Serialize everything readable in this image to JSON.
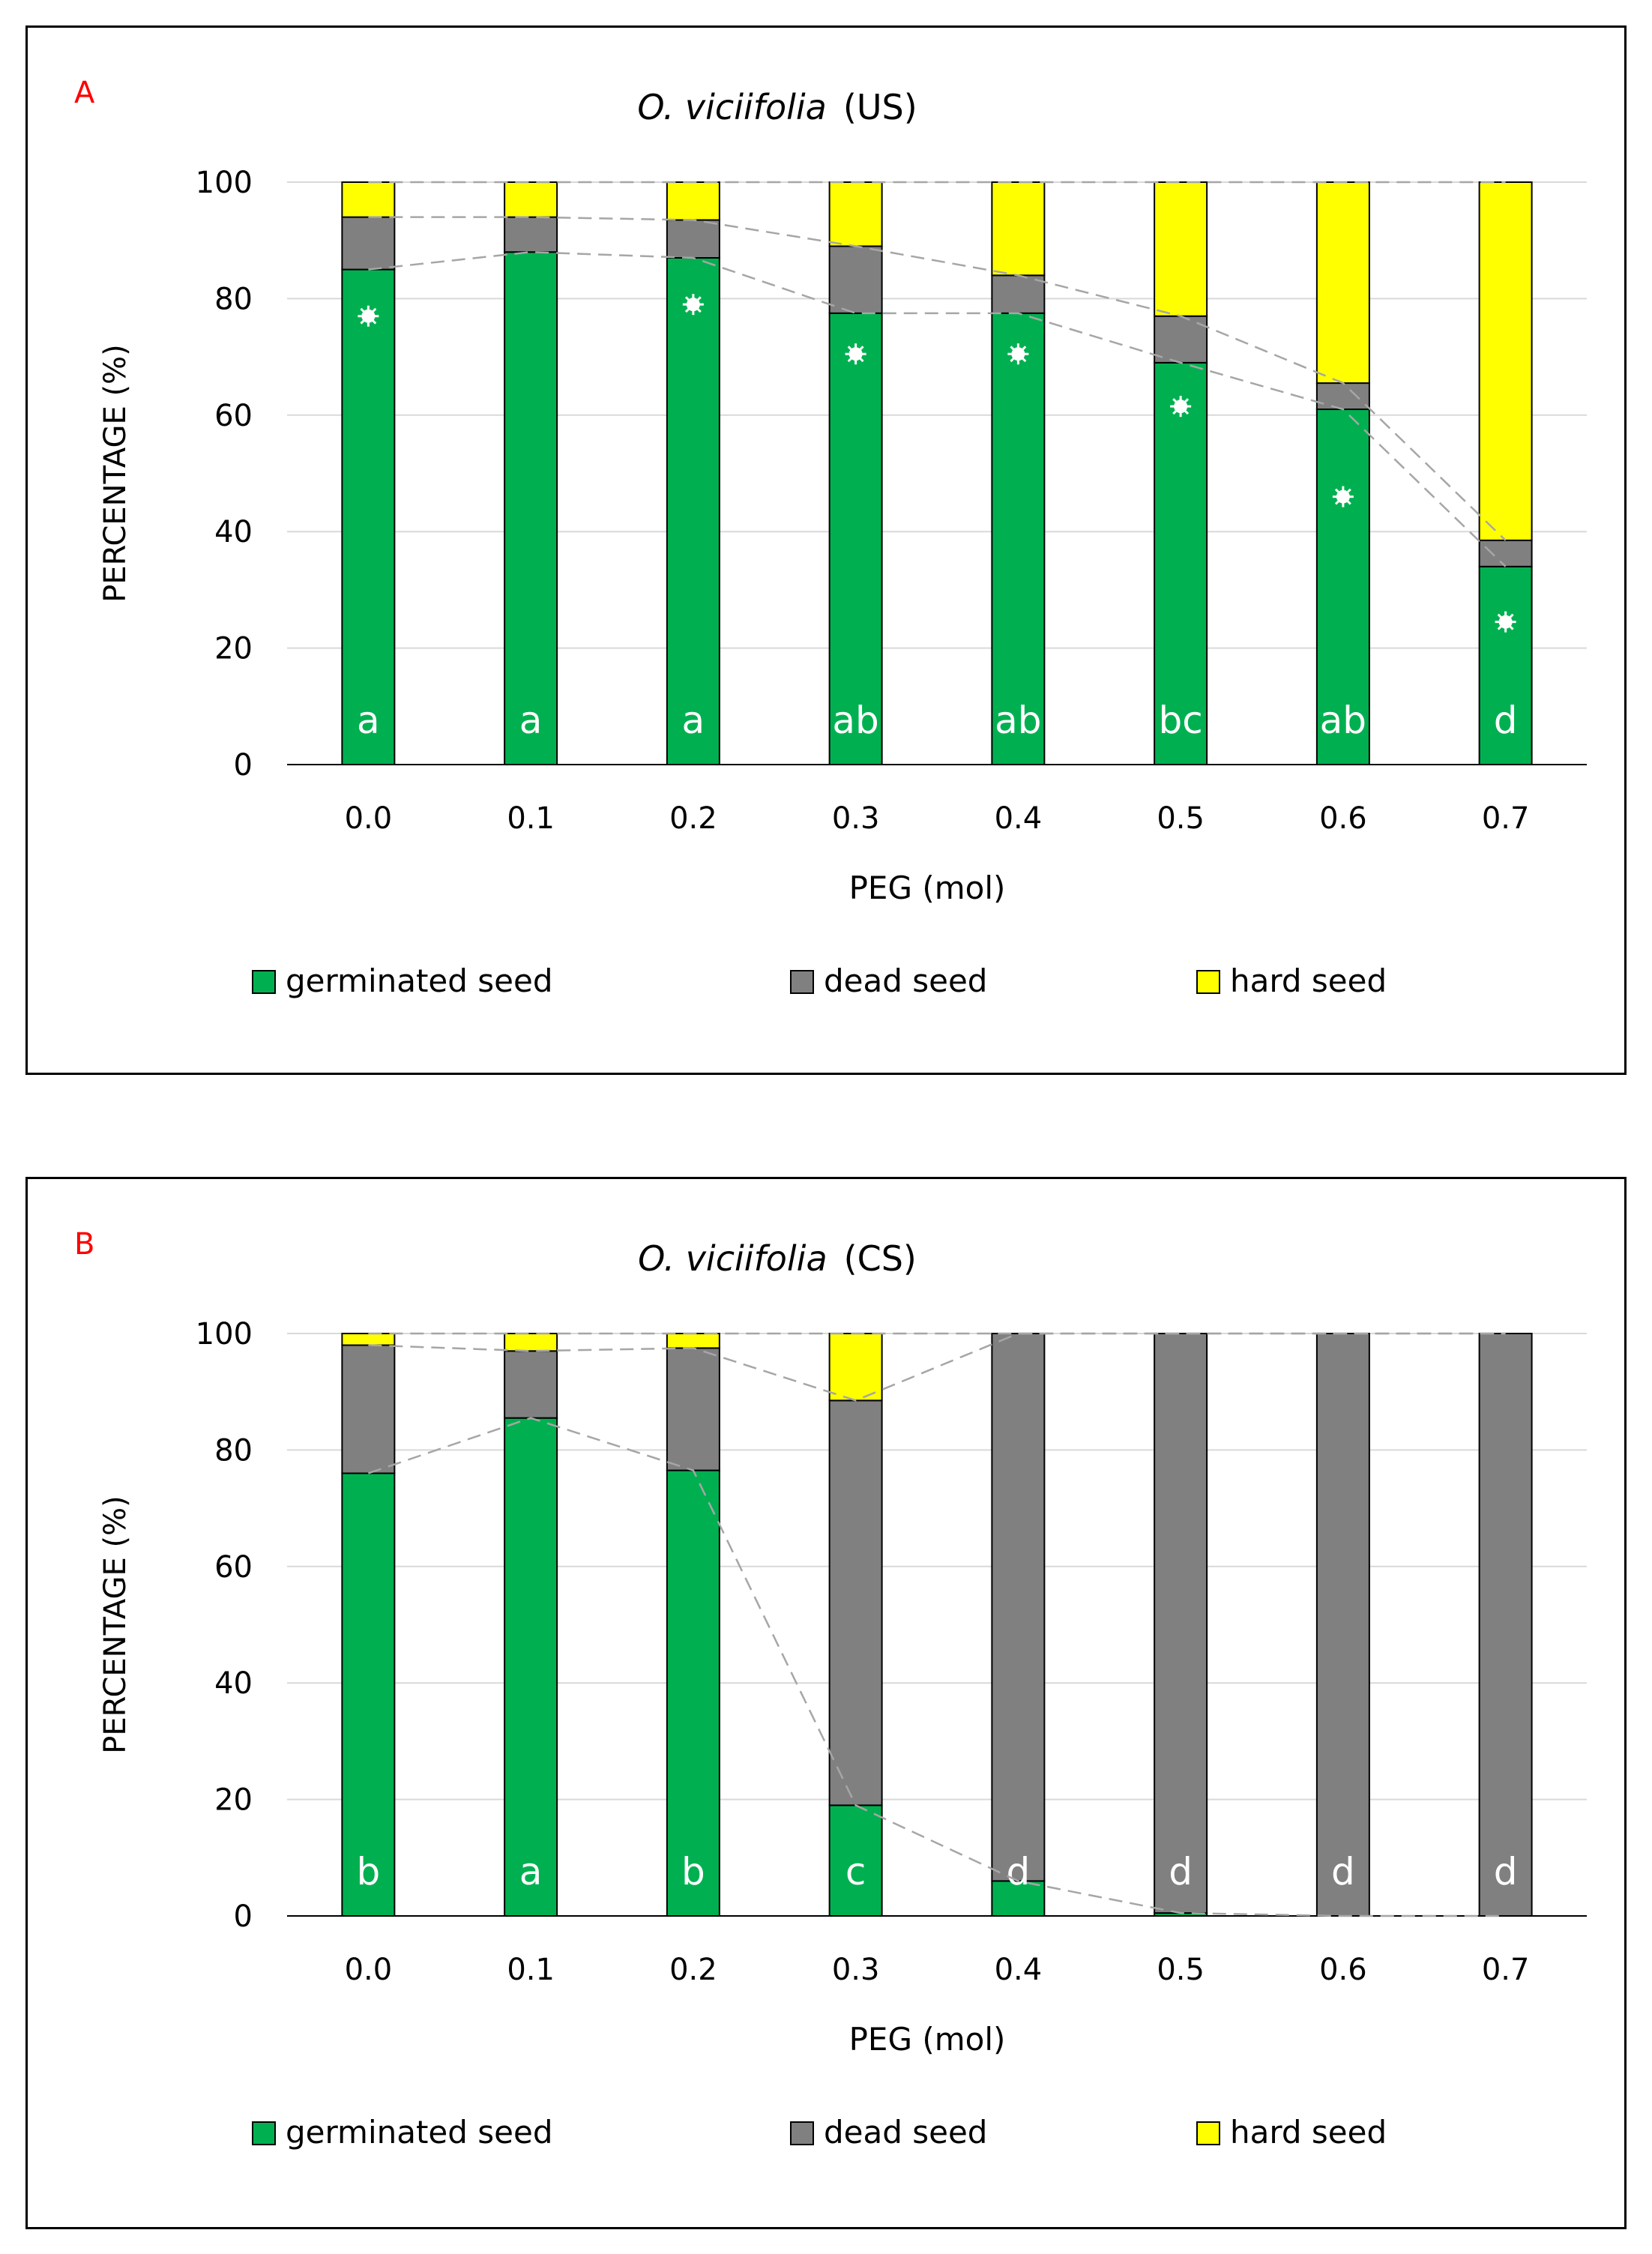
{
  "chart_data": [
    {
      "type": "bar",
      "stacked": true,
      "panel_label": "A",
      "title": "O. viciifolia",
      "title_suffix": "(US)",
      "xlabel": "PEG (mol)",
      "ylabel": "PERCENTAGE (%)",
      "ylim": [
        0,
        100
      ],
      "yticks": [
        "0",
        "20",
        "40",
        "60",
        "80",
        "100"
      ],
      "grid": true,
      "legend_position": "bottom",
      "categories": [
        "0.0",
        "0.1",
        "0.2",
        "0.3",
        "0.4",
        "0.5",
        "0.6",
        "0.7"
      ],
      "series": [
        {
          "name": "germinated seed",
          "color": "#00b050",
          "values": [
            85,
            88,
            87,
            77.5,
            77.5,
            69,
            61,
            34
          ]
        },
        {
          "name": "dead seed",
          "color": "#808080",
          "values": [
            9,
            6,
            6.5,
            11.5,
            6.5,
            8,
            4.5,
            4.5
          ]
        },
        {
          "name": "hard seed",
          "color": "#ffff00",
          "values": [
            6,
            6,
            6.5,
            11,
            16,
            23,
            34.5,
            61.5
          ]
        }
      ],
      "letters": [
        "a",
        "a",
        "a",
        "ab",
        "ab",
        "bc",
        "ab",
        "d"
      ],
      "asterisks": [
        {
          "category": "0.0",
          "value": 77
        },
        {
          "category": "0.2",
          "value": 79
        },
        {
          "category": "0.3",
          "value": 70.5
        },
        {
          "category": "0.4",
          "value": 70.5
        },
        {
          "category": "0.5",
          "value": 61.5
        },
        {
          "category": "0.6",
          "value": 46
        },
        {
          "category": "0.7",
          "value": 24.5
        }
      ]
    },
    {
      "type": "bar",
      "stacked": true,
      "panel_label": "B",
      "title": "O. viciifolia",
      "title_suffix": "(CS)",
      "xlabel": "PEG (mol)",
      "ylabel": "PERCENTAGE (%)",
      "ylim": [
        0,
        100
      ],
      "yticks": [
        "0",
        "20",
        "40",
        "60",
        "80",
        "100"
      ],
      "grid": true,
      "legend_position": "bottom",
      "categories": [
        "0.0",
        "0.1",
        "0.2",
        "0.3",
        "0.4",
        "0.5",
        "0.6",
        "0.7"
      ],
      "series": [
        {
          "name": "germinated seed",
          "color": "#00b050",
          "values": [
            76,
            85.5,
            76.5,
            19,
            6,
            0.5,
            0,
            0
          ]
        },
        {
          "name": "dead seed",
          "color": "#808080",
          "values": [
            22,
            11.5,
            21,
            69.5,
            94,
            99.5,
            100,
            100
          ]
        },
        {
          "name": "hard seed",
          "color": "#ffff00",
          "values": [
            2,
            3,
            2.5,
            11.5,
            0,
            0,
            0,
            0
          ]
        }
      ],
      "letters": [
        "b",
        "a",
        "b",
        "c",
        "d",
        "d",
        "d",
        "d"
      ],
      "asterisks": []
    }
  ]
}
